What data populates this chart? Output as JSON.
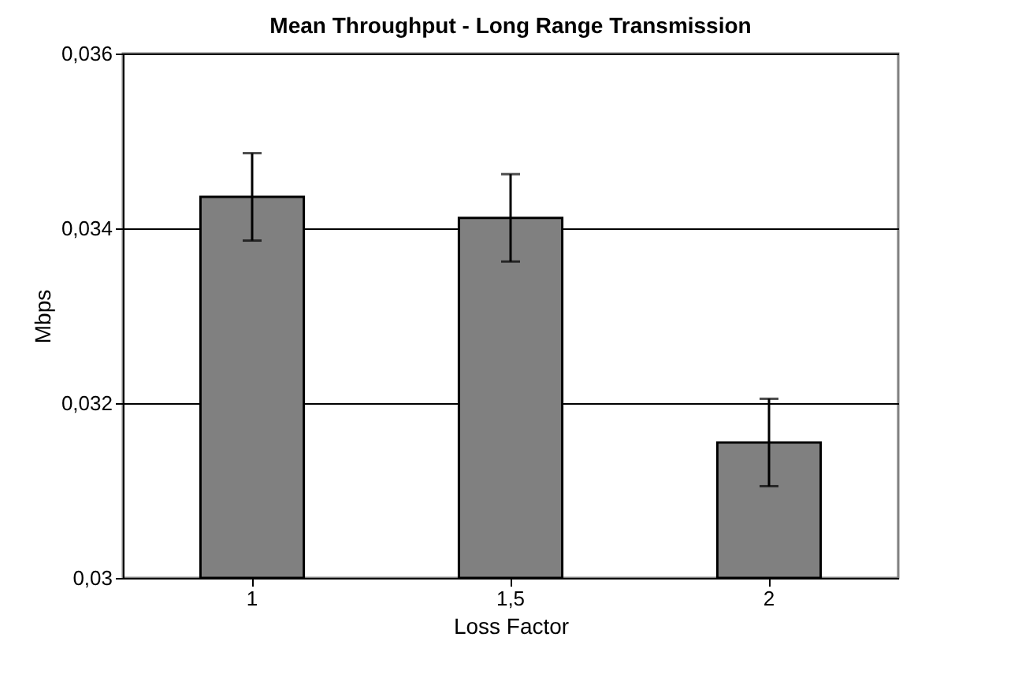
{
  "chart_data": {
    "type": "bar",
    "title": "Mean Throughput - Long Range Transmission",
    "xlabel": "Loss Factor",
    "ylabel": "Mbps",
    "categories": [
      "1",
      "1,5",
      "2"
    ],
    "values": [
      0.03436,
      0.03412,
      0.03155
    ],
    "errors": [
      0.0005,
      0.0005,
      0.0005
    ],
    "color": "#808080",
    "ylim": [
      0.03,
      0.036
    ],
    "yticks": [
      {
        "value": 0.03,
        "label": "0,03"
      },
      {
        "value": 0.032,
        "label": "0,032"
      },
      {
        "value": 0.034,
        "label": "0,034"
      },
      {
        "value": 0.036,
        "label": "0,036"
      }
    ],
    "grid": "y"
  }
}
